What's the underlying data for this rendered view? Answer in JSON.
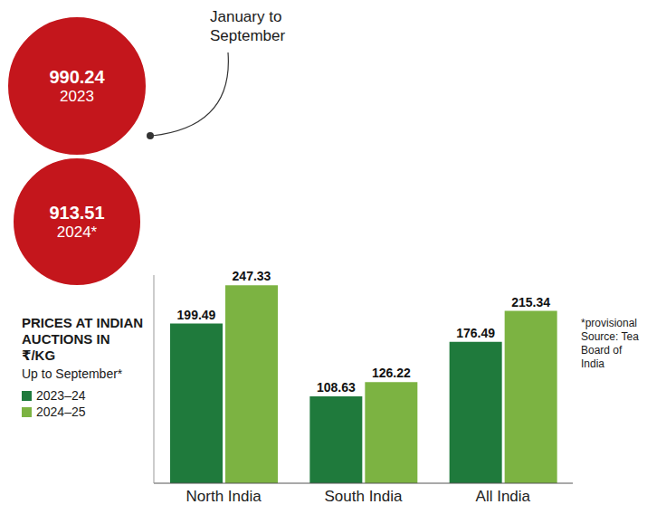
{
  "chart_data": {
    "type": "bar",
    "title": "PRICES AT INDIAN AUCTIONS IN ₹/KG",
    "subtitle": "Up to September*",
    "categories": [
      "North India",
      "South India",
      "All India"
    ],
    "series": [
      {
        "name": "2023–24",
        "color": "#1f7a3c",
        "values": [
          199.49,
          108.63,
          176.49
        ]
      },
      {
        "name": "2024–25",
        "color": "#7cb342",
        "values": [
          247.33,
          126.22,
          215.34
        ]
      }
    ],
    "ylim": [
      0,
      260
    ],
    "data_labels": true,
    "tick_labels": "x",
    "legend": "left",
    "annotations": [
      {
        "value": 990.24,
        "label": "2023",
        "color": "#c4161c"
      },
      {
        "value": 913.51,
        "label": "2024*",
        "color": "#c4161c"
      }
    ],
    "annotation_note": "January to September",
    "notes": [
      "*provisional",
      "Source: Tea Board of India"
    ]
  }
}
